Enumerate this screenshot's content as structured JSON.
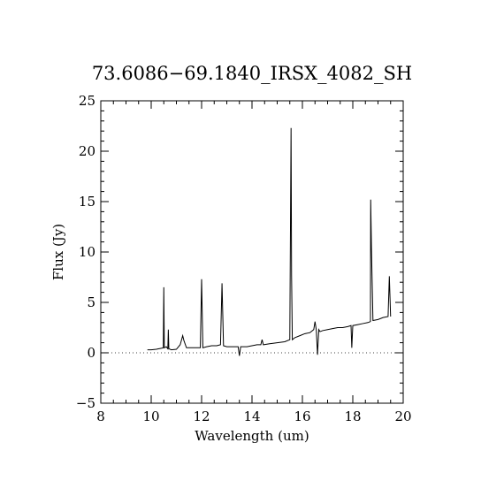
{
  "chart_data": {
    "type": "line",
    "title": "73.6086−69.1840_IRSX_4082_SH",
    "xlabel": "Wavelength (um)",
    "ylabel": "Flux (Jy)",
    "xlim": [
      8,
      20
    ],
    "ylim": [
      -5,
      25
    ],
    "x_ticks": [
      8,
      10,
      12,
      14,
      16,
      18,
      20
    ],
    "x_tick_labels": [
      "8",
      "10",
      "12",
      "14",
      "16",
      "18",
      "20"
    ],
    "y_ticks": [
      -5,
      0,
      5,
      10,
      15,
      20,
      25
    ],
    "y_tick_labels": [
      "−5",
      "0",
      "5",
      "10",
      "15",
      "20",
      "25"
    ],
    "grid": false,
    "zero_line": {
      "y": 0,
      "style": "dotted"
    },
    "series": [
      {
        "x": [
          9.85,
          10.0,
          10.2,
          10.4,
          10.48,
          10.5,
          10.52,
          10.6,
          10.66,
          10.68,
          10.7,
          10.8,
          11.0,
          11.15,
          11.25,
          11.3,
          11.4,
          11.6,
          11.8,
          11.95,
          12.0,
          12.05,
          12.2,
          12.4,
          12.6,
          12.75,
          12.81,
          12.87,
          13.0,
          13.2,
          13.45,
          13.5,
          13.55,
          13.8,
          14.0,
          14.2,
          14.35,
          14.4,
          14.45,
          14.7,
          15.0,
          15.3,
          15.5,
          15.55,
          15.57,
          15.6,
          15.7,
          15.9,
          16.1,
          16.3,
          16.45,
          16.5,
          16.55,
          16.6,
          16.65,
          16.7,
          16.8,
          17.0,
          17.2,
          17.4,
          17.6,
          17.8,
          17.93,
          17.96,
          18.0,
          18.2,
          18.4,
          18.6,
          18.7,
          18.71,
          18.74,
          18.8,
          19.0,
          19.2,
          19.4,
          19.45,
          19.5
        ],
        "y": [
          0.3,
          0.3,
          0.35,
          0.45,
          0.5,
          6.5,
          0.5,
          0.6,
          0.4,
          2.3,
          0.4,
          0.3,
          0.35,
          0.8,
          1.7,
          1.2,
          0.5,
          0.5,
          0.5,
          0.5,
          7.3,
          0.5,
          0.6,
          0.7,
          0.7,
          0.8,
          6.9,
          0.7,
          0.6,
          0.6,
          0.6,
          -0.3,
          0.6,
          0.6,
          0.7,
          0.8,
          0.8,
          1.3,
          0.8,
          0.9,
          1.0,
          1.1,
          1.3,
          22.3,
          7.7,
          1.3,
          1.5,
          1.7,
          1.9,
          2.0,
          2.3,
          3.1,
          2.3,
          -0.2,
          2.3,
          2.1,
          2.2,
          2.3,
          2.4,
          2.5,
          2.5,
          2.6,
          2.7,
          0.5,
          2.7,
          2.8,
          2.9,
          3.0,
          3.1,
          15.2,
          10.4,
          3.2,
          3.3,
          3.5,
          3.6,
          7.6,
          3.6
        ]
      }
    ]
  }
}
